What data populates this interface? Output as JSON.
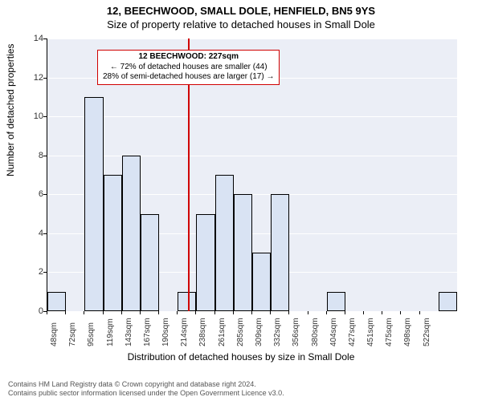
{
  "title_line1": "12, BEECHWOOD, SMALL DOLE, HENFIELD, BN5 9YS",
  "title_line2": "Size of property relative to detached houses in Small Dole",
  "ylabel": "Number of detached properties",
  "xlabel": "Distribution of detached houses by size in Small Dole",
  "chart": {
    "type": "histogram",
    "ylim": [
      0,
      14
    ],
    "yticks": [
      0,
      2,
      4,
      6,
      8,
      10,
      12,
      14
    ],
    "x_start": 48,
    "x_step": 23.7,
    "x_count": 21,
    "x_unit": "sqm",
    "bars": [
      1,
      0,
      11,
      7,
      8,
      5,
      0,
      1,
      5,
      7,
      6,
      3,
      6,
      0,
      0,
      1,
      0,
      0,
      0,
      0,
      0,
      1
    ],
    "bar_fill": "#d9e3f3",
    "bar_border": "#000000",
    "plot_bg": "#ebeef6",
    "grid_color": "#ffffff",
    "vline_x": 227,
    "vline_color": "#d00000",
    "annotation": {
      "line1": "12 BEECHWOOD: 227sqm",
      "line2": "← 72% of detached houses are smaller (44)",
      "line3": "28% of semi-detached houses are larger (17) →",
      "border_color": "#d00000"
    }
  },
  "footer_line1": "Contains HM Land Registry data © Crown copyright and database right 2024.",
  "footer_line2": "Contains public sector information licensed under the Open Government Licence v3.0."
}
